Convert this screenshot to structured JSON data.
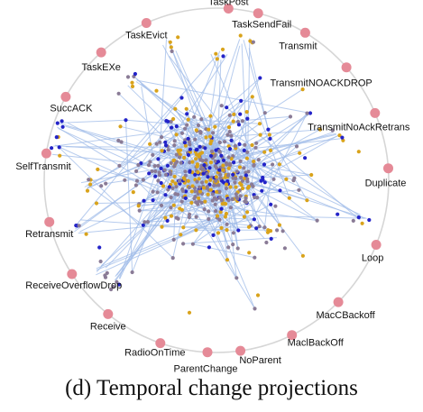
{
  "caption": "(d) Temporal change projections",
  "colors": {
    "ring": "#d6d6d6",
    "anchor": "#e58a97",
    "edge": "#9fbbe8",
    "node_blue": "#2323c8",
    "node_gold": "#d9a31b",
    "node_mauve": "#8a7b96"
  },
  "anchors": [
    {
      "id": "task-post",
      "label": "TaskPost"
    },
    {
      "id": "task-send-fail",
      "label": "TaskSendFail"
    },
    {
      "id": "transmit",
      "label": "Transmit"
    },
    {
      "id": "transmit-noack-drop",
      "label": "TransmitNOACKDROP"
    },
    {
      "id": "transmit-noack-retrans",
      "label": "TransmitNoAckRetrans"
    },
    {
      "id": "duplicate",
      "label": "Duplicate"
    },
    {
      "id": "loop",
      "label": "Loop"
    },
    {
      "id": "macc-backoff",
      "label": "MacCBackoff"
    },
    {
      "id": "macl-backoff",
      "label": "MaclBackOff"
    },
    {
      "id": "no-parent",
      "label": "NoParent"
    },
    {
      "id": "parent-change",
      "label": "ParentChange"
    },
    {
      "id": "radio-on-time",
      "label": "RadioOnTime"
    },
    {
      "id": "receive",
      "label": "Receive"
    },
    {
      "id": "receive-overflow-drop",
      "label": "ReceiveOverflowDrop"
    },
    {
      "id": "retransmit",
      "label": "Retransmit"
    },
    {
      "id": "self-transmit",
      "label": "SelfTransmit"
    },
    {
      "id": "succ-ack",
      "label": "SuccACK"
    },
    {
      "id": "task-exe",
      "label": "TaskEXe"
    },
    {
      "id": "task-evict",
      "label": "TaskEvict"
    }
  ]
}
